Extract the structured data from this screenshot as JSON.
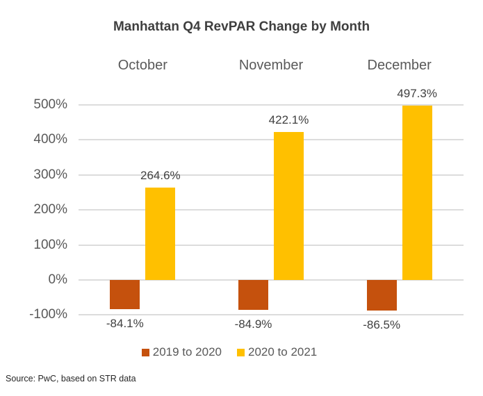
{
  "source_note": "Source: PwC, based on STR data",
  "colors": {
    "series_2019_to_2020": "#C5510D",
    "series_2020_to_2021": "#FFC000",
    "gridline": "#DCDCDC",
    "title_text": "#3F3F3F",
    "axis_text": "#595959",
    "data_label_text": "#404040"
  },
  "chart_data": {
    "type": "bar",
    "title": "Manhattan Q4 RevPAR Change by Month",
    "categories": [
      "October",
      "November",
      "December"
    ],
    "series": [
      {
        "name": "2019 to 2020",
        "color": "#C5510D",
        "values": [
          -84.1,
          -84.9,
          -86.5
        ],
        "labels": [
          "-84.1%",
          "-84.9%",
          "-86.5%"
        ]
      },
      {
        "name": "2020 to 2021",
        "color": "#FFC000",
        "values": [
          264.6,
          422.1,
          497.3
        ],
        "labels": [
          "264.6%",
          "422.1%",
          "497.3%"
        ]
      }
    ],
    "y_ticks": [
      {
        "value": 500,
        "label": "500%"
      },
      {
        "value": 400,
        "label": "400%"
      },
      {
        "value": 300,
        "label": "300%"
      },
      {
        "value": 200,
        "label": "200%"
      },
      {
        "value": 100,
        "label": "100%"
      },
      {
        "value": 0,
        "label": "0%"
      },
      {
        "value": -100,
        "label": "-100%"
      }
    ],
    "ylim": [
      -100,
      500
    ],
    "xlabel": "",
    "ylabel": "",
    "grid": true,
    "legend_position": "bottom"
  }
}
